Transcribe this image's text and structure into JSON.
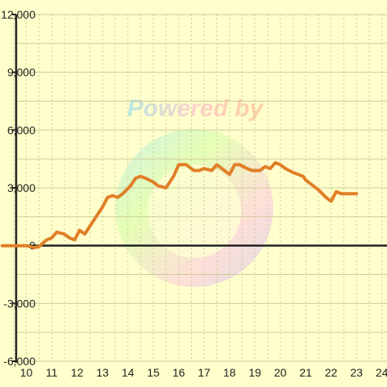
{
  "chart_data": {
    "type": "line",
    "title": "",
    "xlabel": "",
    "ylabel": "",
    "xlim": [
      9.6,
      24.2
    ],
    "ylim": [
      -6000,
      12000
    ],
    "x_ticks": [
      10,
      11,
      12,
      13,
      14,
      15,
      16,
      17,
      18,
      19,
      20,
      21,
      22,
      23,
      24
    ],
    "x_tick_labels": [
      "10",
      "11",
      "12",
      "13",
      "14",
      "15",
      "16",
      "17",
      "18",
      "19",
      "20",
      "21",
      "22",
      "23",
      "24"
    ],
    "y_ticks": [
      -6000,
      -3000,
      0,
      3000,
      6000,
      9000,
      12000
    ],
    "y_tick_labels": [
      "-6,000",
      "-3,000",
      "0",
      "3,000",
      "6,000",
      "9,000",
      "12,000"
    ],
    "grid": true,
    "legend": "none",
    "colors": {
      "background": "#ffffcc",
      "line": "#e07f27",
      "grid": "#cccc99",
      "axis": "#222222"
    },
    "watermark": "Powered by",
    "series": [
      {
        "x": [
          9.05,
          9.5,
          10.0,
          10.3,
          10.5,
          10.8,
          11.0,
          11.2,
          11.5,
          11.7,
          11.9,
          12.1,
          12.3,
          12.6,
          12.8,
          13.0,
          13.2,
          13.4,
          13.6,
          13.8,
          14.1,
          14.3,
          14.5,
          14.7,
          15.0,
          15.2,
          15.5,
          15.8,
          16.0,
          16.3,
          16.6,
          16.8,
          17.0,
          17.3,
          17.5,
          17.8,
          18.0,
          18.2,
          18.4,
          18.7,
          18.9,
          19.2,
          19.4,
          19.6,
          19.8,
          20.0,
          20.2,
          20.5,
          20.7,
          20.9,
          21.0,
          21.2,
          21.5,
          21.8,
          22.0,
          22.2,
          22.4,
          22.6,
          22.9,
          23.0
        ],
        "values": [
          0,
          0,
          0,
          -100,
          -50,
          300,
          400,
          700,
          600,
          400,
          300,
          800,
          600,
          1200,
          1600,
          2000,
          2500,
          2600,
          2500,
          2700,
          3100,
          3500,
          3600,
          3500,
          3300,
          3100,
          3000,
          3600,
          4200,
          4200,
          3900,
          3900,
          4000,
          3900,
          4200,
          3900,
          3700,
          4200,
          4200,
          4000,
          3900,
          3900,
          4100,
          4000,
          4300,
          4200,
          4000,
          3800,
          3700,
          3600,
          3400,
          3200,
          2900,
          2500,
          2300,
          2800,
          2700,
          2700,
          2700,
          2700
        ]
      }
    ]
  }
}
